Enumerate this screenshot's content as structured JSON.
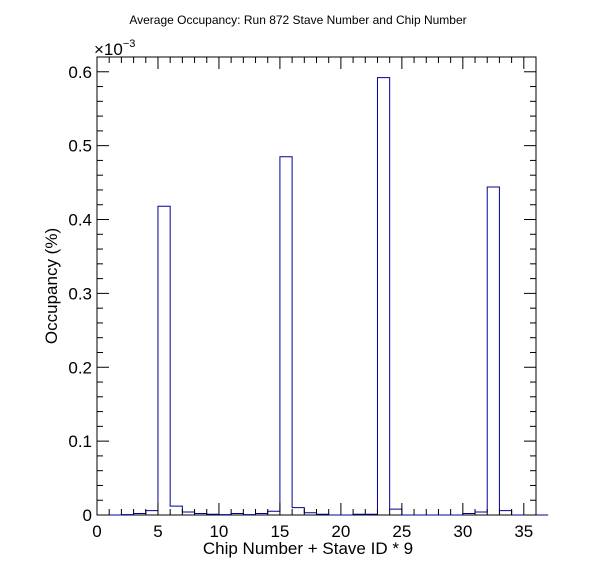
{
  "chart_data": {
    "type": "bar",
    "style": "step-histogram",
    "title": "Average Occupancy: Run 872 Stave Number and Chip Number",
    "xlabel": "Chip Number + Stave ID * 9",
    "ylabel": "Occupancy (%)",
    "y_scale_label": {
      "base": "×10",
      "exponent": "−3"
    },
    "xlim": [
      0,
      36
    ],
    "ylim": [
      0,
      0.00062
    ],
    "bin_width": 1,
    "x_ticks": [
      0,
      5,
      10,
      15,
      20,
      25,
      30,
      35
    ],
    "x_tick_labels": [
      "0",
      "5",
      "10",
      "15",
      "20",
      "25",
      "30",
      "35"
    ],
    "y_ticks": [
      0,
      0.0001,
      0.0002,
      0.0003,
      0.0004,
      0.0005,
      0.0006
    ],
    "y_tick_labels": [
      "0",
      "0.1",
      "0.2",
      "0.3",
      "0.4",
      "0.5",
      "0.6"
    ],
    "line_color": "#000099",
    "grid": false,
    "legend": "none",
    "series": [
      {
        "bin_start": 0,
        "values": [
          0,
          0,
          5e-07,
          2e-06,
          6e-06,
          0.000418,
          1.2e-05,
          4e-06,
          2e-06,
          1e-06,
          5e-07,
          2e-06,
          5e-07,
          2e-06,
          5e-06,
          0.000485,
          1e-05,
          3e-06,
          1e-06,
          0,
          0,
          1e-06,
          1e-06,
          0.000592,
          8e-06,
          0,
          0,
          0,
          0,
          0,
          2e-06,
          4e-06,
          0.000444,
          6e-06,
          0,
          0,
          0
        ]
      }
    ]
  }
}
